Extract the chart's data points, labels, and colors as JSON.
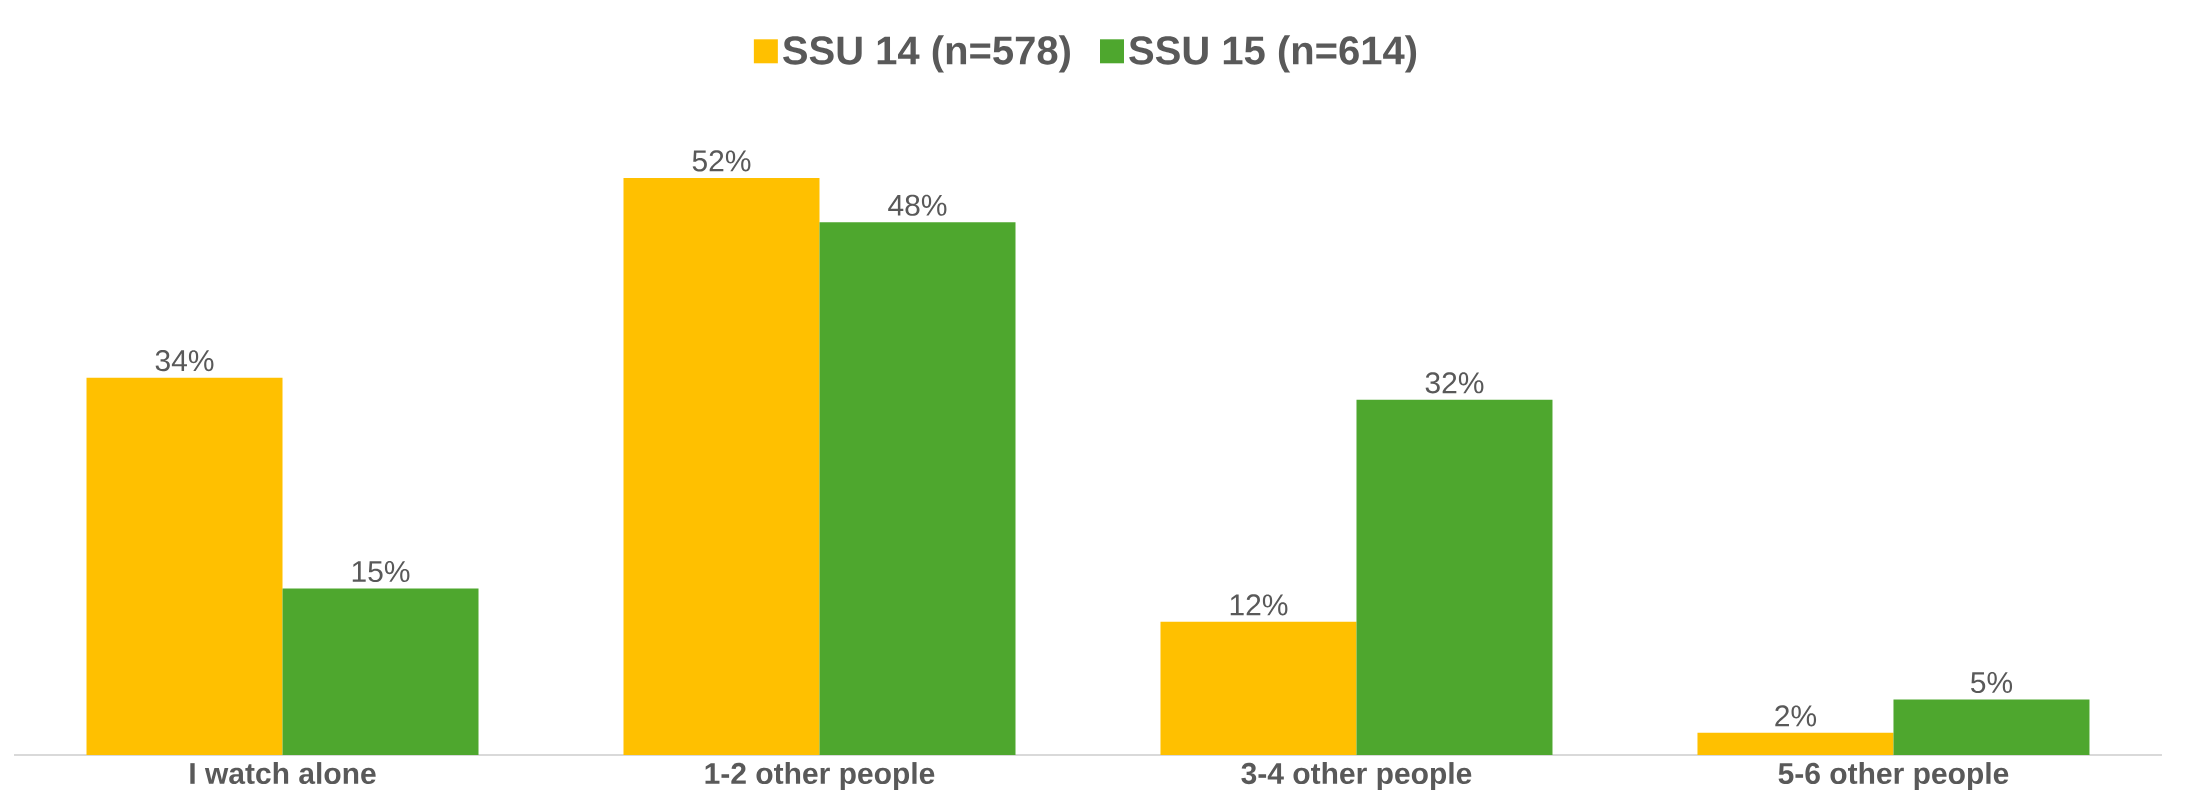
{
  "chart_data": {
    "type": "bar",
    "categories": [
      "I watch alone",
      "1-2 other people",
      "3-4 other people",
      "5-6 other people"
    ],
    "series": [
      {
        "name": "SSU 14 (n=578)",
        "color": "#ffc000",
        "values": [
          34,
          52,
          12,
          2
        ],
        "value_labels": [
          "34%",
          "52%",
          "12%",
          "2%"
        ]
      },
      {
        "name": "SSU 15 (n=614)",
        "color": "#4ea72e",
        "values": [
          15,
          48,
          32,
          5
        ],
        "value_labels": [
          "15%",
          "48%",
          "32%",
          "5%"
        ]
      }
    ],
    "tick_labels": "x",
    "legend": "top"
  }
}
